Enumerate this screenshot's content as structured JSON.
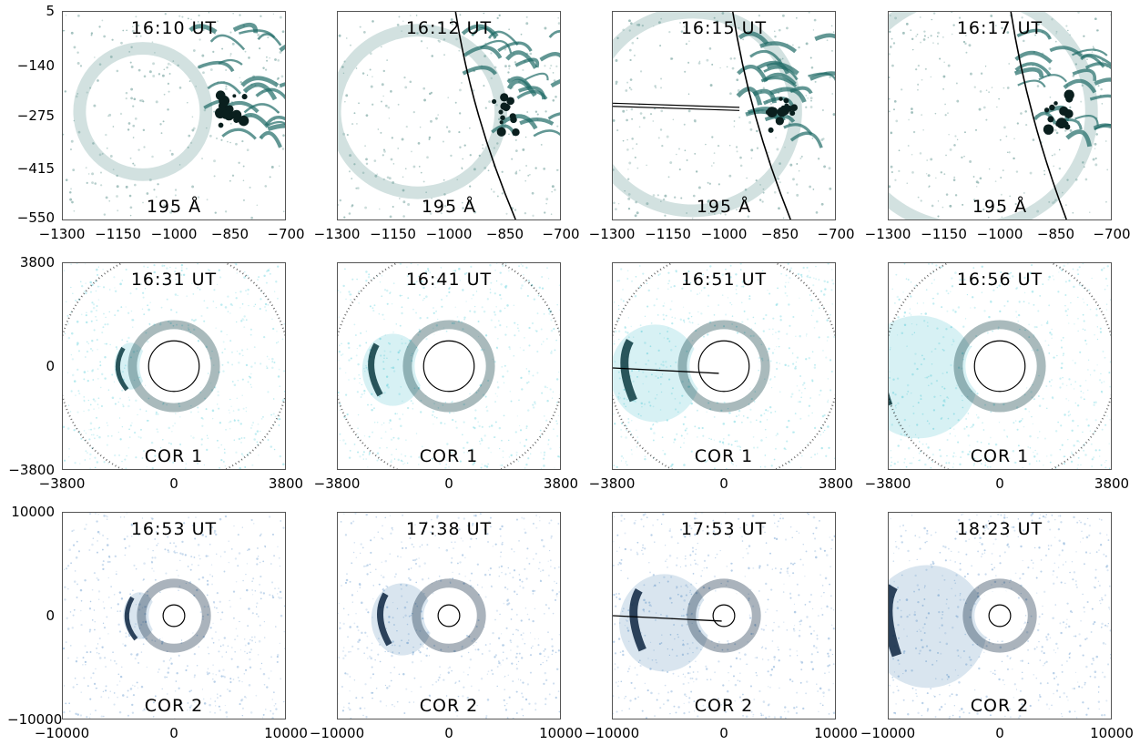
{
  "rows": [
    {
      "instrument": "195 Å",
      "colors": {
        "bright": "#1f6b66",
        "dark": "#0a1f1e",
        "haze": "#7fa9a5"
      },
      "y_ticks": [
        "5",
        "−140",
        "−275",
        "−415",
        "−550"
      ],
      "x_ticks": [
        "−1300",
        "−1150",
        "−1000",
        "−850",
        "−700"
      ],
      "times": [
        "16:10 UT",
        "16:12 UT",
        "16:15 UT",
        "16:17 UT"
      ]
    },
    {
      "instrument": "COR 1",
      "colors": {
        "bright": "#22b3c4",
        "dark": "#0a3a40",
        "haze": "#9fe3ea"
      },
      "y_ticks": [
        "3800",
        "0",
        "−3800"
      ],
      "x_ticks": [
        "−3800",
        "0",
        "3800"
      ],
      "times": [
        "16:31 UT",
        "16:41 UT",
        "16:51 UT",
        "16:56 UT"
      ]
    },
    {
      "instrument": "COR 2",
      "colors": {
        "bright": "#2e6da8",
        "dark": "#0c2440",
        "haze": "#9fbfe0"
      },
      "y_ticks": [
        "10000",
        "0",
        "−10000"
      ],
      "x_ticks": [
        "−10000",
        "0",
        "10000"
      ],
      "times": [
        "16:53 UT",
        "17:38 UT",
        "17:53 UT",
        "18:23 UT"
      ]
    }
  ]
}
